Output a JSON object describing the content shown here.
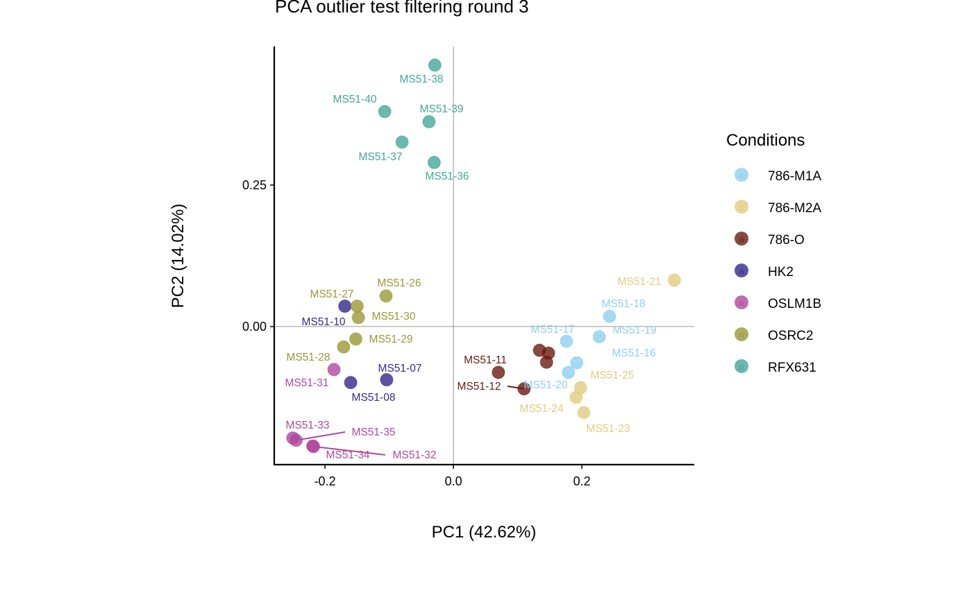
{
  "chart_data": {
    "type": "scatter",
    "title": "PCA outlier test filtering round  3",
    "xlabel": "PC1 (42.62%)",
    "ylabel": "PC2 (14.02%)",
    "xlim": [
      -0.279,
      0.375
    ],
    "ylim": [
      -0.244,
      0.495
    ],
    "xticks": [
      {
        "v": -0.2,
        "label": "-0.2"
      },
      {
        "v": 0.0,
        "label": "0.0"
      },
      {
        "v": 0.2,
        "label": "0.2"
      }
    ],
    "yticks": [
      {
        "v": 0.0,
        "label": "0.00"
      },
      {
        "v": 0.25,
        "label": "0.25"
      }
    ],
    "grid": false,
    "reference_lines": {
      "x": 0,
      "y": 0
    },
    "legend": {
      "title": "Conditions",
      "placement": "right"
    },
    "series": [
      {
        "name": "786-M1A",
        "color": "#8dd0f0",
        "points": [
          {
            "label": "MS51-18",
            "x": 0.243,
            "y": 0.018
          },
          {
            "label": "MS51-19",
            "x": 0.227,
            "y": -0.018
          },
          {
            "label": "MS51-17",
            "x": 0.176,
            "y": -0.026
          },
          {
            "label": "MS51-16",
            "x": 0.192,
            "y": -0.064
          },
          {
            "label": "MS51-20",
            "x": 0.179,
            "y": -0.081
          }
        ]
      },
      {
        "name": "786-M2A",
        "color": "#e2cc7e",
        "points": [
          {
            "label": "MS51-21",
            "x": 0.344,
            "y": 0.082
          },
          {
            "label": "MS51-25",
            "x": 0.198,
            "y": -0.108
          },
          {
            "label": "MS51-24",
            "x": 0.191,
            "y": -0.125
          },
          {
            "label": "MS51-23",
            "x": 0.203,
            "y": -0.152
          }
        ]
      },
      {
        "name": "786-O",
        "color": "#6a1b10",
        "points": [
          {
            "label": "MS51-11",
            "x": 0.07,
            "y": -0.081
          },
          {
            "label": "MS51-12",
            "x": 0.11,
            "y": -0.11
          },
          {
            "label": "",
            "x": 0.134,
            "y": -0.042
          },
          {
            "label": "",
            "x": 0.148,
            "y": -0.047
          },
          {
            "label": "",
            "x": 0.145,
            "y": -0.063
          }
        ]
      },
      {
        "name": "HK2",
        "color": "#35288e",
        "points": [
          {
            "label": "MS51-10",
            "x": -0.169,
            "y": 0.036
          },
          {
            "label": "MS51-07",
            "x": -0.104,
            "y": -0.094
          },
          {
            "label": "MS51-08",
            "x": -0.16,
            "y": -0.099
          }
        ]
      },
      {
        "name": "OSLM1B",
        "color": "#b0479f",
        "points": [
          {
            "label": "MS51-31",
            "x": -0.186,
            "y": -0.076
          },
          {
            "label": "MS51-33",
            "x": -0.25,
            "y": -0.197
          },
          {
            "label": "MS51-35",
            "x": -0.245,
            "y": -0.201
          },
          {
            "label": "MS51-34",
            "x": -0.219,
            "y": -0.211
          },
          {
            "label": "MS51-32",
            "x": -0.218,
            "y": -0.212
          }
        ]
      },
      {
        "name": "OSRC2",
        "color": "#999935",
        "points": [
          {
            "label": "MS51-26",
            "x": -0.105,
            "y": 0.054
          },
          {
            "label": "MS51-27",
            "x": -0.15,
            "y": 0.036
          },
          {
            "label": "MS51-30",
            "x": -0.148,
            "y": 0.016
          },
          {
            "label": "MS51-29",
            "x": -0.152,
            "y": -0.022
          },
          {
            "label": "MS51-28",
            "x": -0.171,
            "y": -0.036
          }
        ]
      },
      {
        "name": "RFX631",
        "color": "#44a897",
        "points": [
          {
            "label": "MS51-38",
            "x": -0.029,
            "y": 0.462
          },
          {
            "label": "MS51-40",
            "x": -0.107,
            "y": 0.38
          },
          {
            "label": "MS51-39",
            "x": -0.038,
            "y": 0.362
          },
          {
            "label": "MS51-37",
            "x": -0.08,
            "y": 0.326
          },
          {
            "label": "MS51-36",
            "x": -0.03,
            "y": 0.29
          }
        ]
      }
    ]
  }
}
